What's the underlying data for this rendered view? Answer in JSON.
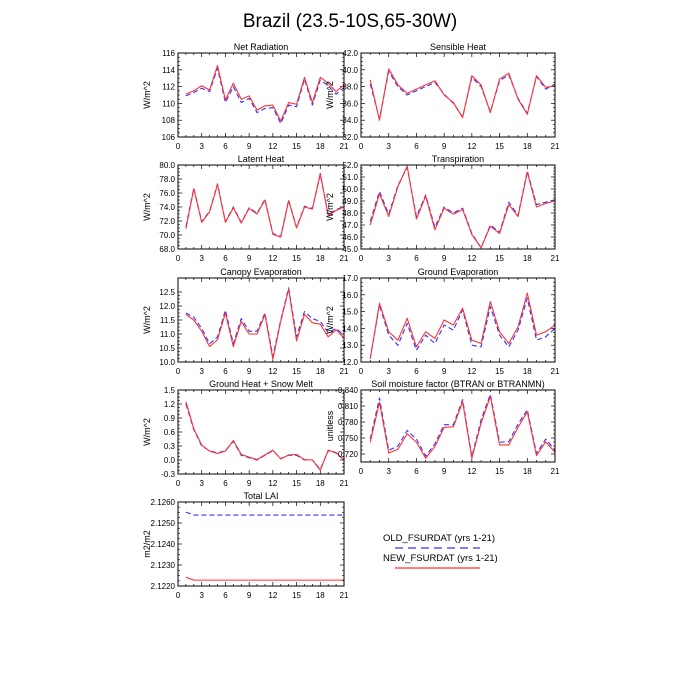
{
  "figure": {
    "title": "Brazil (23.5-10S,65-30W)"
  },
  "legend": {
    "entries": [
      {
        "label": "OLD_FSURDAT (yrs 1-21)",
        "color": "#3333ff",
        "dash": "dashed"
      },
      {
        "label": "NEW_FSURDAT (yrs 1-21)",
        "color": "#ff3333",
        "dash": "solid"
      }
    ]
  },
  "chart_data": [
    {
      "type": "line",
      "title": "Net Radiation",
      "xlabel": "",
      "ylabel": "W/m^2",
      "x": [
        1,
        2,
        3,
        4,
        5,
        6,
        7,
        8,
        9,
        10,
        11,
        12,
        13,
        14,
        15,
        16,
        17,
        18,
        19,
        20,
        21
      ],
      "xlim": [
        0,
        21
      ],
      "xticks": [
        "0",
        "3",
        "6",
        "9",
        "12",
        "15",
        "18",
        "21"
      ],
      "ylim": [
        106,
        116
      ],
      "yticks": [
        "106",
        "108",
        "110",
        "112",
        "114",
        "116"
      ],
      "grid": false,
      "series": [
        {
          "name": "OLD_FSURDAT (yrs 1-21)",
          "color": "#3333ff",
          "dash": "dashed",
          "values": [
            110.9,
            111.3,
            111.8,
            111.4,
            114.2,
            110.1,
            112.0,
            110.1,
            110.6,
            108.9,
            109.4,
            109.5,
            107.6,
            109.8,
            109.6,
            112.9,
            109.8,
            112.8,
            112.1,
            111.1,
            111.9
          ]
        },
        {
          "name": "NEW_FSURDAT (yrs 1-21)",
          "color": "#ff3333",
          "dash": "solid",
          "values": [
            111.1,
            111.5,
            112.1,
            111.6,
            114.5,
            110.4,
            112.4,
            110.5,
            110.9,
            109.2,
            109.7,
            109.8,
            107.9,
            110.1,
            109.9,
            113.1,
            110.1,
            113.1,
            112.4,
            111.4,
            112.2
          ]
        }
      ]
    },
    {
      "type": "line",
      "title": "Sensible Heat",
      "xlabel": "",
      "ylabel": "W/m^2",
      "x": [
        1,
        2,
        3,
        4,
        5,
        6,
        7,
        8,
        9,
        10,
        11,
        12,
        13,
        14,
        15,
        16,
        17,
        18,
        19,
        20,
        21
      ],
      "xlim": [
        0,
        21
      ],
      "xticks": [
        "0",
        "3",
        "6",
        "9",
        "12",
        "15",
        "18",
        "21"
      ],
      "ylim": [
        32,
        42
      ],
      "yticks": [
        "32.0",
        "34.0",
        "36.0",
        "38.0",
        "40.0",
        "42.0"
      ],
      "grid": false,
      "series": [
        {
          "name": "OLD_FSURDAT (yrs 1-21)",
          "color": "#3333ff",
          "dash": "dashed",
          "values": [
            38.3,
            34.2,
            39.8,
            38.0,
            37.0,
            37.5,
            38.0,
            38.5,
            37.1,
            36.0,
            34.4,
            39.1,
            38.0,
            35.0,
            38.7,
            39.4,
            36.6,
            34.8,
            39.2,
            37.7,
            38.3
          ]
        },
        {
          "name": "NEW_FSURDAT (yrs 1-21)",
          "color": "#ff3333",
          "dash": "solid",
          "values": [
            38.8,
            34.0,
            40.1,
            38.2,
            37.2,
            37.7,
            38.2,
            38.7,
            37.0,
            36.1,
            34.3,
            39.3,
            38.2,
            34.9,
            38.9,
            39.6,
            36.5,
            34.7,
            39.3,
            37.9,
            38.1
          ]
        }
      ]
    },
    {
      "type": "line",
      "title": "Latent Heat",
      "xlabel": "",
      "ylabel": "W/m^2",
      "x": [
        1,
        2,
        3,
        4,
        5,
        6,
        7,
        8,
        9,
        10,
        11,
        12,
        13,
        14,
        15,
        16,
        17,
        18,
        19,
        20,
        21
      ],
      "xlim": [
        0,
        21
      ],
      "xticks": [
        "0",
        "3",
        "6",
        "9",
        "12",
        "15",
        "18",
        "21"
      ],
      "ylim": [
        68,
        80
      ],
      "yticks": [
        "68.0",
        "70.0",
        "72.0",
        "74.0",
        "76.0",
        "78.0",
        "80.0"
      ],
      "grid": false,
      "series": [
        {
          "name": "OLD_FSURDAT (yrs 1-21)",
          "color": "#3333ff",
          "dash": "dashed",
          "values": [
            71.2,
            76.7,
            71.9,
            73.4,
            77.3,
            71.9,
            74.0,
            71.8,
            73.9,
            73.1,
            75.1,
            70.2,
            69.8,
            75.0,
            71.1,
            74.1,
            73.8,
            78.6,
            72.9,
            73.6,
            74.1
          ]
        },
        {
          "name": "NEW_FSURDAT (yrs 1-21)",
          "color": "#ff3333",
          "dash": "solid",
          "values": [
            70.9,
            76.6,
            71.8,
            73.3,
            77.2,
            71.8,
            73.9,
            71.7,
            73.8,
            73.0,
            75.0,
            70.1,
            69.7,
            74.9,
            71.0,
            74.0,
            73.7,
            78.8,
            72.8,
            73.5,
            74.0
          ]
        }
      ]
    },
    {
      "type": "line",
      "title": "Transpiration",
      "xlabel": "",
      "ylabel": "W/m^2",
      "x": [
        1,
        2,
        3,
        4,
        5,
        6,
        7,
        8,
        9,
        10,
        11,
        12,
        13,
        14,
        15,
        16,
        17,
        18,
        19,
        20,
        21
      ],
      "xlim": [
        0,
        21
      ],
      "xticks": [
        "0",
        "3",
        "6",
        "9",
        "12",
        "15",
        "18",
        "21"
      ],
      "ylim": [
        45,
        52
      ],
      "yticks": [
        "45.0",
        "46.0",
        "47.0",
        "48.0",
        "49.0",
        "50.0",
        "51.0",
        "52.0"
      ],
      "grid": false,
      "series": [
        {
          "name": "OLD_FSURDAT (yrs 1-21)",
          "color": "#3333ff",
          "dash": "dashed",
          "values": [
            47.3,
            49.8,
            47.9,
            50.3,
            51.8,
            47.7,
            49.5,
            46.8,
            48.5,
            48.0,
            48.4,
            46.3,
            45.1,
            47.0,
            46.4,
            48.9,
            47.8,
            51.5,
            48.7,
            48.9,
            49.1
          ]
        },
        {
          "name": "NEW_FSURDAT (yrs 1-21)",
          "color": "#ff3333",
          "dash": "solid",
          "values": [
            47.0,
            49.6,
            47.7,
            50.2,
            51.9,
            47.5,
            49.4,
            46.6,
            48.4,
            47.9,
            48.3,
            46.2,
            45.1,
            46.9,
            46.3,
            48.7,
            47.7,
            51.4,
            48.5,
            48.8,
            49.0
          ]
        }
      ]
    },
    {
      "type": "line",
      "title": "Canopy Evaporation",
      "xlabel": "",
      "ylabel": "W/m^2",
      "x": [
        1,
        2,
        3,
        4,
        5,
        6,
        7,
        8,
        9,
        10,
        11,
        12,
        13,
        14,
        15,
        16,
        17,
        18,
        19,
        20,
        21
      ],
      "xlim": [
        0,
        21
      ],
      "xticks": [
        "0",
        "3",
        "6",
        "9",
        "12",
        "15",
        "18",
        "21"
      ],
      "ylim": [
        10,
        13
      ],
      "yticks": [
        "10.0",
        "10.5",
        "11.0",
        "11.5",
        "12.0",
        "12.5"
      ],
      "grid": false,
      "series": [
        {
          "name": "OLD_FSURDAT (yrs 1-21)",
          "color": "#3333ff",
          "dash": "dashed",
          "values": [
            11.75,
            11.6,
            11.2,
            10.65,
            10.9,
            11.85,
            10.65,
            11.55,
            11.1,
            11.1,
            11.75,
            10.2,
            11.5,
            12.65,
            10.9,
            11.8,
            11.55,
            11.45,
            11.05,
            11.2,
            10.95
          ]
        },
        {
          "name": "NEW_FSURDAT (yrs 1-21)",
          "color": "#ff3333",
          "dash": "solid",
          "values": [
            11.7,
            11.5,
            11.1,
            10.55,
            10.8,
            11.75,
            10.55,
            11.45,
            11.0,
            11.0,
            11.7,
            10.1,
            11.45,
            12.6,
            10.75,
            11.7,
            11.4,
            11.35,
            10.9,
            11.15,
            10.85
          ]
        }
      ]
    },
    {
      "type": "line",
      "title": "Ground Evaporation",
      "xlabel": "",
      "ylabel": "W/m^2",
      "x": [
        1,
        2,
        3,
        4,
        5,
        6,
        7,
        8,
        9,
        10,
        11,
        12,
        13,
        14,
        15,
        16,
        17,
        18,
        19,
        20,
        21
      ],
      "xlim": [
        0,
        21
      ],
      "xticks": [
        "0",
        "3",
        "6",
        "9",
        "12",
        "15",
        "18",
        "21"
      ],
      "ylim": [
        12,
        17
      ],
      "yticks": [
        "12.0",
        "13.0",
        "14.0",
        "15.0",
        "16.0",
        "17.0"
      ],
      "grid": false,
      "series": [
        {
          "name": "OLD_FSURDAT (yrs 1-21)",
          "color": "#3333ff",
          "dash": "dashed",
          "values": [
            12.2,
            15.4,
            13.6,
            13.0,
            14.3,
            12.7,
            13.6,
            13.1,
            14.2,
            13.9,
            15.1,
            13.0,
            12.9,
            15.3,
            13.6,
            12.9,
            13.9,
            15.8,
            13.3,
            13.5,
            14.0
          ]
        },
        {
          "name": "NEW_FSURDAT (yrs 1-21)",
          "color": "#ff3333",
          "dash": "solid",
          "values": [
            12.2,
            15.5,
            13.8,
            13.3,
            14.6,
            12.9,
            13.8,
            13.4,
            14.5,
            14.2,
            15.2,
            13.3,
            13.1,
            15.6,
            13.8,
            13.1,
            14.1,
            16.1,
            13.6,
            13.8,
            14.2
          ]
        }
      ]
    },
    {
      "type": "line",
      "title": "Ground Heat + Snow Melt",
      "xlabel": "",
      "ylabel": "W/m^2",
      "x": [
        1,
        2,
        3,
        4,
        5,
        6,
        7,
        8,
        9,
        10,
        11,
        12,
        13,
        14,
        15,
        16,
        17,
        18,
        19,
        20,
        21
      ],
      "xlim": [
        0,
        21
      ],
      "xticks": [
        "0",
        "3",
        "6",
        "9",
        "12",
        "15",
        "18",
        "21"
      ],
      "ylim": [
        -0.3,
        1.5
      ],
      "yticks": [
        "-0.3",
        "0.0",
        "0.3",
        "0.6",
        "0.9",
        "1.2",
        "1.5"
      ],
      "grid": false,
      "series": [
        {
          "name": "OLD_FSURDAT (yrs 1-21)",
          "color": "#3333ff",
          "dash": "dashed",
          "values": [
            1.2,
            0.65,
            0.3,
            0.2,
            0.15,
            0.2,
            0.4,
            0.1,
            0.05,
            0.0,
            0.1,
            0.2,
            0.03,
            0.1,
            0.1,
            0.0,
            0.0,
            -0.2,
            0.2,
            0.15,
            0.0
          ]
        },
        {
          "name": "NEW_FSURDAT (yrs 1-21)",
          "color": "#ff3333",
          "dash": "solid",
          "values": [
            1.25,
            0.67,
            0.32,
            0.19,
            0.14,
            0.19,
            0.42,
            0.12,
            0.06,
            0.01,
            0.11,
            0.21,
            0.02,
            0.11,
            0.12,
            0.01,
            0.0,
            -0.22,
            0.21,
            0.16,
            0.0
          ]
        }
      ]
    },
    {
      "type": "line",
      "title": "Soil moisture factor (BTRAN or BTRANMN)",
      "xlabel": "",
      "ylabel": "unitless",
      "x": [
        1,
        2,
        3,
        4,
        5,
        6,
        7,
        8,
        9,
        10,
        11,
        12,
        13,
        14,
        15,
        16,
        17,
        18,
        19,
        20,
        21
      ],
      "xlim": [
        0,
        21
      ],
      "xticks": [
        "0",
        "3",
        "6",
        "9",
        "12",
        "15",
        "18",
        "21"
      ],
      "ylim": [
        0.705,
        0.84
      ],
      "yticks": [
        "0.720",
        "0.750",
        "0.780",
        "0.810",
        "0.840"
      ],
      "grid": false,
      "series": [
        {
          "name": "OLD_FSURDAT (yrs 1-21)",
          "color": "#3333ff",
          "dash": "dashed",
          "values": [
            0.748,
            0.825,
            0.727,
            0.735,
            0.764,
            0.748,
            0.716,
            0.739,
            0.775,
            0.775,
            0.822,
            0.715,
            0.784,
            0.832,
            0.742,
            0.743,
            0.776,
            0.803,
            0.721,
            0.748,
            0.727
          ]
        },
        {
          "name": "NEW_FSURDAT (yrs 1-21)",
          "color": "#ff3333",
          "dash": "solid",
          "values": [
            0.742,
            0.817,
            0.722,
            0.729,
            0.758,
            0.742,
            0.712,
            0.734,
            0.77,
            0.771,
            0.818,
            0.712,
            0.778,
            0.828,
            0.737,
            0.737,
            0.77,
            0.799,
            0.717,
            0.743,
            0.723
          ]
        }
      ]
    },
    {
      "type": "line",
      "title": "Total LAI",
      "xlabel": "",
      "ylabel": "m2/m2",
      "x": [
        1,
        2,
        3,
        4,
        5,
        6,
        7,
        8,
        9,
        10,
        11,
        12,
        13,
        14,
        15,
        16,
        17,
        18,
        19,
        20,
        21
      ],
      "xlim": [
        0,
        21
      ],
      "xticks": [
        "0",
        "3",
        "6",
        "9",
        "12",
        "15",
        "18",
        "21"
      ],
      "ylim": [
        2.122,
        2.126
      ],
      "yticks": [
        "2.1220",
        "2.1230",
        "2.1240",
        "2.1250",
        "2.1260"
      ],
      "grid": false,
      "series": [
        {
          "name": "OLD_FSURDAT (yrs 1-21)",
          "color": "#3333ff",
          "dash": "dashed",
          "values": [
            2.12552,
            2.12538,
            2.12538,
            2.12538,
            2.12538,
            2.12538,
            2.12538,
            2.12538,
            2.12538,
            2.12538,
            2.12538,
            2.12538,
            2.12538,
            2.12538,
            2.12538,
            2.12538,
            2.12538,
            2.12538,
            2.12538,
            2.12538,
            2.12538
          ]
        },
        {
          "name": "NEW_FSURDAT (yrs 1-21)",
          "color": "#ff3333",
          "dash": "solid",
          "values": [
            2.12242,
            2.12228,
            2.12228,
            2.12228,
            2.12228,
            2.12228,
            2.12228,
            2.12228,
            2.12228,
            2.12228,
            2.12228,
            2.12228,
            2.12228,
            2.12228,
            2.12228,
            2.12228,
            2.12228,
            2.12228,
            2.12228,
            2.12228,
            2.12228
          ]
        }
      ]
    }
  ]
}
